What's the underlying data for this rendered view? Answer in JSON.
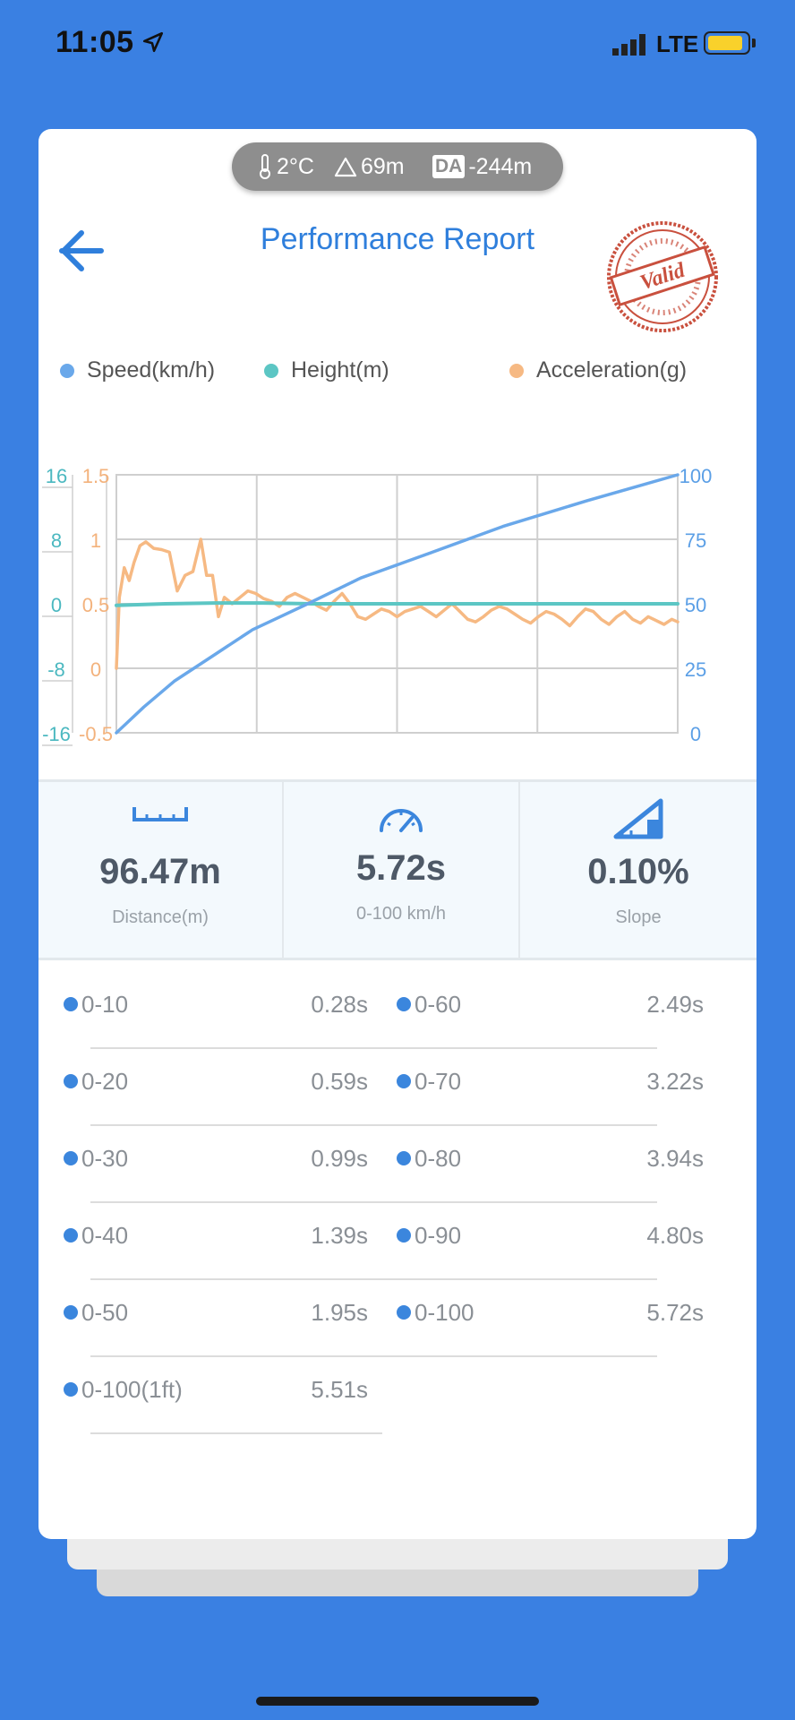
{
  "status_bar": {
    "time": "11:05",
    "network": "LTE",
    "battery_color": "#f9d12b"
  },
  "weather": {
    "temperature": "2°C",
    "altitude": "69m",
    "da_label": "DA",
    "density_altitude": "-244m"
  },
  "header": {
    "title": "Performance Report",
    "stamp_text": "Valid"
  },
  "legend": [
    {
      "label": "Speed(km/h)",
      "color": "#6aa8ea"
    },
    {
      "label": "Height(m)",
      "color": "#5cc6c4"
    },
    {
      "label": "Acceleration(g)",
      "color": "#f6b983"
    }
  ],
  "chart_data": {
    "type": "line",
    "axes": {
      "height_ticks": [
        "16",
        "8",
        "0",
        "-8",
        "-16"
      ],
      "height_ylim": [
        -16,
        16
      ],
      "accel_ticks": [
        "1.5",
        "1",
        "0.5",
        "0",
        "-0.5"
      ],
      "accel_ylim": [
        -0.5,
        1.5
      ],
      "speed_ticks": [
        "100",
        "75",
        "50",
        "25",
        "0"
      ],
      "speed_ylim": [
        0,
        100
      ],
      "x_ticks_drawn": false,
      "xlim": [
        0,
        5.72
      ],
      "grid": true
    },
    "series": [
      {
        "name": "Speed(km/h)",
        "color": "#6aa8ea",
        "axis": "speed",
        "x": [
          0,
          0.28,
          0.59,
          0.99,
          1.39,
          1.95,
          2.49,
          3.22,
          3.94,
          4.8,
          5.72
        ],
        "y": [
          0,
          10,
          20,
          30,
          40,
          50,
          60,
          70,
          80,
          90,
          100
        ]
      },
      {
        "name": "Height(m)",
        "color": "#5cc6c4",
        "axis": "height",
        "x": [
          0,
          0.5,
          1.0,
          1.5,
          2.0,
          2.5,
          3.0,
          3.5,
          4.0,
          4.5,
          5.0,
          5.72
        ],
        "y": [
          -0.2,
          0.0,
          0.1,
          0.1,
          0.0,
          0.0,
          0.0,
          0.0,
          0.0,
          0.0,
          0.0,
          0.0
        ]
      },
      {
        "name": "Acceleration(g)",
        "color": "#f6b983",
        "axis": "accel",
        "x": [
          0,
          0.03,
          0.08,
          0.13,
          0.18,
          0.24,
          0.3,
          0.38,
          0.46,
          0.54,
          0.62,
          0.7,
          0.78,
          0.86,
          0.92,
          0.98,
          1.04,
          1.1,
          1.18,
          1.26,
          1.34,
          1.42,
          1.5,
          1.58,
          1.66,
          1.74,
          1.82,
          1.9,
          1.98,
          2.06,
          2.14,
          2.22,
          2.3,
          2.38,
          2.46,
          2.54,
          2.62,
          2.7,
          2.78,
          2.86,
          2.94,
          3.02,
          3.1,
          3.18,
          3.26,
          3.34,
          3.42,
          3.5,
          3.58,
          3.66,
          3.74,
          3.82,
          3.9,
          3.98,
          4.06,
          4.14,
          4.22,
          4.3,
          4.38,
          4.46,
          4.54,
          4.62,
          4.7,
          4.78,
          4.86,
          4.94,
          5.02,
          5.1,
          5.18,
          5.26,
          5.34,
          5.42,
          5.5,
          5.58,
          5.66,
          5.72
        ],
        "y": [
          0.0,
          0.55,
          0.78,
          0.68,
          0.82,
          0.95,
          0.98,
          0.93,
          0.92,
          0.9,
          0.6,
          0.72,
          0.75,
          1.0,
          0.72,
          0.72,
          0.4,
          0.55,
          0.5,
          0.55,
          0.6,
          0.58,
          0.54,
          0.52,
          0.48,
          0.55,
          0.58,
          0.55,
          0.52,
          0.48,
          0.45,
          0.52,
          0.58,
          0.5,
          0.4,
          0.38,
          0.42,
          0.46,
          0.44,
          0.4,
          0.44,
          0.46,
          0.48,
          0.44,
          0.4,
          0.45,
          0.5,
          0.44,
          0.38,
          0.36,
          0.4,
          0.45,
          0.48,
          0.46,
          0.42,
          0.38,
          0.35,
          0.4,
          0.44,
          0.42,
          0.38,
          0.33,
          0.4,
          0.46,
          0.44,
          0.38,
          0.34,
          0.4,
          0.44,
          0.38,
          0.35,
          0.4,
          0.37,
          0.34,
          0.38,
          0.36
        ]
      }
    ]
  },
  "stats": [
    {
      "icon": "ruler-icon",
      "value": "96.47m",
      "label": "Distance(m)"
    },
    {
      "icon": "speedometer-icon",
      "value": "5.72s",
      "label": "0-100 km/h"
    },
    {
      "icon": "slope-icon",
      "value": "0.10%",
      "label": "Slope"
    }
  ],
  "splits": [
    {
      "label": "0-10",
      "value": "0.28s"
    },
    {
      "label": "0-60",
      "value": "2.49s"
    },
    {
      "label": "0-20",
      "value": "0.59s"
    },
    {
      "label": "0-70",
      "value": "3.22s"
    },
    {
      "label": "0-30",
      "value": "0.99s"
    },
    {
      "label": "0-80",
      "value": "3.94s"
    },
    {
      "label": "0-40",
      "value": "1.39s"
    },
    {
      "label": "0-90",
      "value": "4.80s"
    },
    {
      "label": "0-50",
      "value": "1.95s"
    },
    {
      "label": "0-100",
      "value": "5.72s"
    },
    {
      "label": "0-100(1ft)",
      "value": "5.51s"
    }
  ]
}
